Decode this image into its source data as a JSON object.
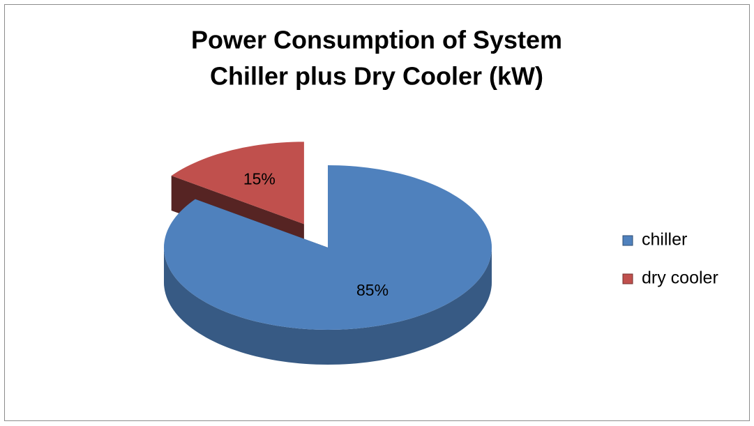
{
  "chart_data": {
    "type": "pie3d",
    "title": [
      "Power Consumption of System",
      "Chiller plus Dry Cooler (kW)"
    ],
    "categories": [
      "chiller",
      "dry cooler"
    ],
    "values": [
      85,
      15
    ],
    "value_labels": [
      "85%",
      "15%"
    ],
    "colors": [
      "#4f81bd",
      "#c0504d"
    ],
    "legend": "right"
  }
}
